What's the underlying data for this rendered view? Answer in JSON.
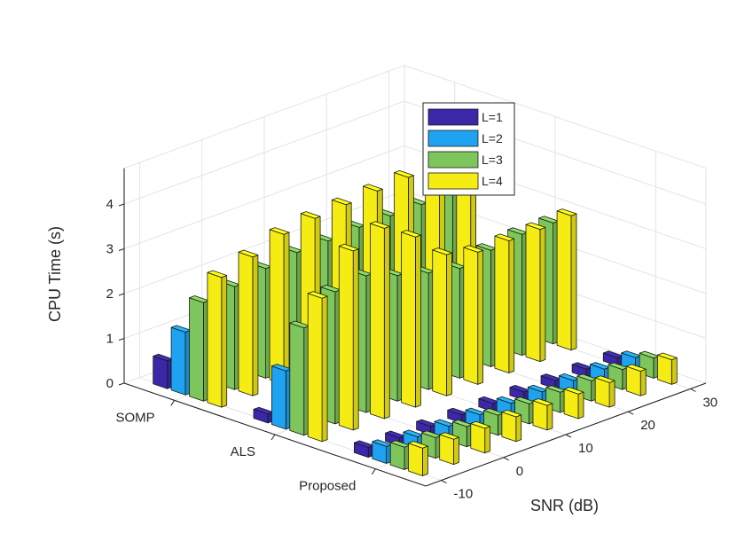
{
  "chart_data": {
    "type": "bar3d",
    "title": "",
    "xlabel": "SNR (dB)",
    "ylabel": "",
    "zlabel": "CPU Time (s)",
    "methods": [
      "SOMP",
      "ALS",
      "Proposed"
    ],
    "snr": [
      -10,
      -5,
      0,
      5,
      10,
      15,
      20,
      25,
      30
    ],
    "snr_ticks": [
      -10,
      0,
      10,
      20,
      30
    ],
    "snr_tick_labels": [
      "-10",
      "0",
      "10",
      "20",
      "30"
    ],
    "z_ticks": [
      0,
      1,
      2,
      3,
      4
    ],
    "z_tick_labels": [
      "0",
      "1",
      "2",
      "3",
      "4"
    ],
    "zlim": [
      0,
      4.8
    ],
    "series": [
      {
        "name": "L=1",
        "color": "#3b28a8",
        "values": {
          "SOMP": [
            0.62,
            0.62,
            0.64,
            0.66,
            0.66,
            0.66,
            0.64,
            0.64,
            0.63
          ],
          "ALS": [
            0.2,
            0.3,
            0.35,
            0.3,
            0.25,
            0.22,
            0.22,
            0.2,
            0.2
          ],
          "Proposed": [
            0.22,
            0.18,
            0.18,
            0.18,
            0.18,
            0.18,
            0.18,
            0.18,
            0.18
          ]
        }
      },
      {
        "name": "L=2",
        "color": "#1fa3f0",
        "values": {
          "SOMP": [
            1.4,
            1.45,
            1.5,
            1.55,
            1.55,
            1.6,
            1.6,
            1.6,
            1.6
          ],
          "ALS": [
            1.3,
            1.2,
            1.0,
            0.9,
            0.8,
            0.75,
            0.72,
            0.7,
            0.7
          ],
          "Proposed": [
            0.38,
            0.34,
            0.32,
            0.32,
            0.32,
            0.32,
            0.32,
            0.32,
            0.32
          ]
        }
      },
      {
        "name": "L=3",
        "color": "#7ec65b",
        "values": {
          "SOMP": [
            2.2,
            2.3,
            2.45,
            2.55,
            2.55,
            2.6,
            2.6,
            2.6,
            2.6
          ],
          "ALS": [
            2.4,
            2.95,
            3.05,
            2.8,
            2.6,
            2.45,
            2.6,
            2.7,
            2.7
          ],
          "Proposed": [
            0.5,
            0.46,
            0.45,
            0.45,
            0.45,
            0.45,
            0.45,
            0.45,
            0.45
          ]
        }
      },
      {
        "name": "L=4",
        "color": "#f5ec14",
        "values": {
          "SOMP": [
            2.9,
            3.1,
            3.35,
            3.45,
            3.5,
            3.55,
            3.6,
            3.62,
            3.62
          ],
          "ALS": [
            3.2,
            4.0,
            4.25,
            3.8,
            3.15,
            2.95,
            2.95,
            2.95,
            3.0
          ],
          "Proposed": [
            0.62,
            0.56,
            0.55,
            0.55,
            0.55,
            0.55,
            0.55,
            0.55,
            0.55
          ]
        }
      }
    ],
    "legend": {
      "location": "top-right",
      "entries": [
        "L=1",
        "L=2",
        "L=3",
        "L=4"
      ]
    },
    "grid": true
  }
}
